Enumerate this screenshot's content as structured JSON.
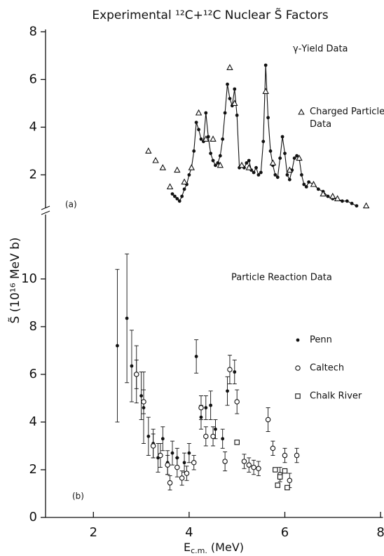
{
  "chart_data": [
    {
      "type": "scatter",
      "title": "Experimental ¹²C+¹²C Nuclear S̃ Factors",
      "panel_label": "(a)",
      "xlim": [
        1,
        8.05
      ],
      "ylim": [
        0.6,
        8.1
      ],
      "yticks": [
        2,
        4,
        6,
        8
      ],
      "legend": "upper right",
      "series": [
        {
          "name": "γ-Yield Data",
          "color": "#111",
          "marker": "dot",
          "line": true,
          "x": [
            3.65,
            3.7,
            3.75,
            3.8,
            3.85,
            3.9,
            3.95,
            4.0,
            4.05,
            4.1,
            4.15,
            4.2,
            4.25,
            4.3,
            4.35,
            4.4,
            4.45,
            4.5,
            4.55,
            4.6,
            4.65,
            4.7,
            4.75,
            4.8,
            4.85,
            4.9,
            4.95,
            5.0,
            5.05,
            5.1,
            5.15,
            5.2,
            5.25,
            5.3,
            5.35,
            5.4,
            5.45,
            5.5,
            5.55,
            5.6,
            5.65,
            5.7,
            5.75,
            5.8,
            5.85,
            5.9,
            5.95,
            6.0,
            6.05,
            6.1,
            6.15,
            6.2,
            6.25,
            6.3,
            6.35,
            6.4,
            6.45,
            6.5,
            6.6,
            6.7,
            6.8,
            6.9,
            7.0,
            7.1,
            7.2,
            7.3,
            7.4,
            7.5
          ],
          "values": [
            1.2,
            1.1,
            1.0,
            0.9,
            1.1,
            1.4,
            1.6,
            2.0,
            2.3,
            3.0,
            4.2,
            3.9,
            3.5,
            3.4,
            4.6,
            3.6,
            2.9,
            2.6,
            2.4,
            2.5,
            2.8,
            3.5,
            4.6,
            5.8,
            5.2,
            4.9,
            5.6,
            4.5,
            2.3,
            2.4,
            2.3,
            2.5,
            2.6,
            2.2,
            2.1,
            2.3,
            2.0,
            2.1,
            3.4,
            6.6,
            4.4,
            3.0,
            2.4,
            2.0,
            1.9,
            2.7,
            3.6,
            2.9,
            2.0,
            1.8,
            2.2,
            2.7,
            2.8,
            2.7,
            2.0,
            1.6,
            1.5,
            1.7,
            1.6,
            1.4,
            1.3,
            1.1,
            1.0,
            1.0,
            0.9,
            0.9,
            0.8,
            0.7
          ]
        },
        {
          "name": "Charged Particle Data",
          "color": "#111",
          "marker": "triangle",
          "x": [
            3.15,
            3.3,
            3.45,
            3.6,
            3.75,
            3.9,
            4.05,
            4.2,
            4.35,
            4.5,
            4.65,
            4.85,
            4.95,
            5.1,
            5.25,
            5.6,
            5.75,
            6.1,
            6.3,
            6.6,
            6.8,
            7.0,
            7.1,
            7.7
          ],
          "values": [
            3.0,
            2.6,
            2.3,
            1.5,
            2.2,
            1.7,
            2.3,
            4.6,
            3.5,
            3.5,
            2.4,
            6.5,
            5.0,
            2.4,
            2.3,
            5.5,
            2.5,
            2.2,
            2.7,
            1.6,
            1.2,
            1.1,
            1.0,
            0.7
          ]
        }
      ]
    },
    {
      "type": "scatter",
      "subtitle": "Particle Reaction Data",
      "panel_label": "(b)",
      "ylabel": "S̃ (10¹⁶ MeV b)",
      "xlabel": {
        "text": "E",
        "subscript": "c.m.",
        "suffix": " (MeV)"
      },
      "xlim": [
        1,
        8.05
      ],
      "xticks": [
        2,
        4,
        6,
        8
      ],
      "ylim": [
        0,
        12.7
      ],
      "yticks": [
        0,
        2,
        4,
        6,
        8,
        10
      ],
      "legend": "right",
      "series": [
        {
          "name": "Penn",
          "color": "#111",
          "marker": "dot",
          "x": [
            2.5,
            2.7,
            2.8,
            2.9,
            3.0,
            3.05,
            3.15,
            3.25,
            3.35,
            3.45,
            3.55,
            3.65,
            3.75,
            3.9,
            4.0,
            4.15,
            4.25,
            4.35,
            4.45,
            4.55,
            4.7,
            4.8,
            4.95
          ],
          "values": [
            7.2,
            8.35,
            6.35,
            6.0,
            5.1,
            4.6,
            3.4,
            3.1,
            2.5,
            3.3,
            2.3,
            2.7,
            2.5,
            2.3,
            2.7,
            6.75,
            4.2,
            4.6,
            4.7,
            3.7,
            3.3,
            5.3,
            6.1
          ],
          "errors": [
            3.2,
            2.7,
            1.5,
            1.2,
            1.0,
            1.5,
            0.8,
            0.6,
            0.6,
            0.5,
            0.5,
            0.5,
            0.4,
            0.4,
            0.4,
            0.7,
            0.5,
            0.5,
            0.6,
            0.4,
            0.4,
            0.6,
            0.5
          ]
        },
        {
          "name": "Caltech",
          "color": "#111",
          "marker": "circle",
          "x": [
            2.9,
            3.05,
            3.25,
            3.4,
            3.55,
            3.6,
            3.75,
            3.85,
            3.95,
            4.1,
            4.25,
            4.35,
            4.5,
            4.75,
            4.85,
            5.0,
            5.15,
            5.25,
            5.35,
            5.45,
            5.65,
            5.75,
            5.9,
            6.0,
            6.1,
            6.25
          ],
          "values": [
            6.0,
            4.85,
            3.0,
            2.6,
            2.2,
            1.45,
            2.1,
            1.65,
            1.85,
            2.3,
            4.6,
            3.4,
            3.4,
            2.35,
            6.2,
            4.85,
            2.35,
            2.2,
            2.1,
            2.05,
            4.1,
            2.9,
            1.8,
            2.6,
            1.55,
            2.6
          ],
          "errors": [
            0.6,
            0.5,
            0.5,
            0.5,
            0.4,
            0.3,
            0.4,
            0.3,
            0.3,
            0.3,
            0.5,
            0.4,
            0.4,
            0.4,
            0.6,
            0.5,
            0.3,
            0.3,
            0.3,
            0.3,
            0.5,
            0.3,
            0.3,
            0.3,
            0.3,
            0.3
          ]
        },
        {
          "name": "Chalk River",
          "color": "#111",
          "marker": "square",
          "x": [
            5.0,
            5.8,
            5.85,
            5.9,
            6.0,
            6.05
          ],
          "values": [
            3.15,
            2.0,
            1.35,
            1.7,
            1.95,
            1.25
          ]
        }
      ]
    }
  ]
}
